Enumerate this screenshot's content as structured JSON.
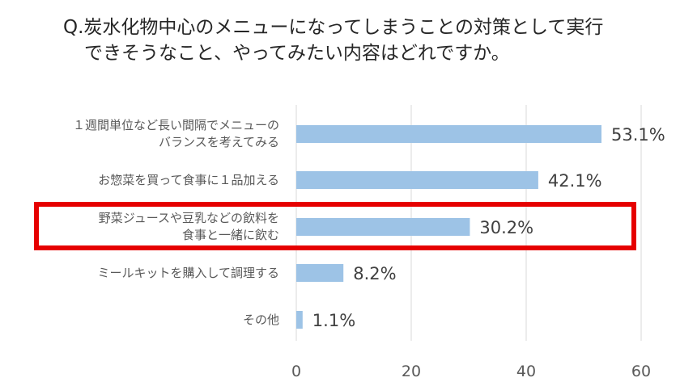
{
  "title_lines": [
    "Q.炭水化物中心のメニューになってしまうことの対策として実行",
    "できそうなこと、やってみたい内容はどれですか。"
  ],
  "chart_data": {
    "type": "bar",
    "orientation": "horizontal",
    "categories": [
      [
        "１週間単位など長い間隔でメニューの",
        "バランスを考えてみる"
      ],
      [
        "お惣菜を買って食事に１品加える"
      ],
      [
        "野菜ジュースや豆乳などの飲料を",
        "食事と一緒に飲む"
      ],
      [
        "ミールキットを購入して調理する"
      ],
      [
        "その他"
      ]
    ],
    "values": [
      53.1,
      42.1,
      30.2,
      8.2,
      1.1
    ],
    "value_labels": [
      "53.1%",
      "42.1%",
      "30.2%",
      "8.2%",
      "1.1%"
    ],
    "xlim": [
      0,
      60
    ],
    "xticks": [
      "0",
      "20",
      "40",
      "60"
    ],
    "highlighted_index": 2,
    "colors": {
      "bar": "#9dc3e6",
      "highlight": "#e60000",
      "grid": "#d9d9d9"
    },
    "grid": true
  }
}
